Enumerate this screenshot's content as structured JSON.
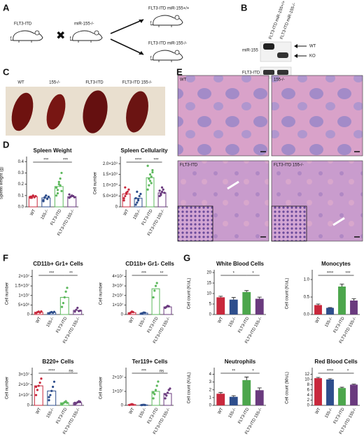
{
  "panels": [
    "A",
    "B",
    "C",
    "D",
    "E",
    "F",
    "G"
  ],
  "panel_a": {
    "parent1": "FLT3-ITD",
    "parent2": "miR-155-/-",
    "offspring1": "FLT3-ITD miR-155+/+",
    "offspring2": "FLT3-ITD miR-155-/-"
  },
  "panel_b": {
    "columns": [
      "FLT3-ITD miR-155+/+",
      "FLT3-ITD miR-155-/-"
    ],
    "rows": [
      "miR-155",
      "FLT3-ITD"
    ],
    "bands": [
      "WT",
      "KO"
    ]
  },
  "panel_c": {
    "labels": [
      "WT",
      "155-/-",
      "FLT3-ITD",
      "FLT3-ITD 155-/-"
    ]
  },
  "panel_e": {
    "labels": [
      "WT",
      "155-/-",
      "FLT3-ITD",
      "FLT3-ITD 155-/-"
    ]
  },
  "chart_data": [
    {
      "type": "dotplot",
      "title": "Spleen Weight",
      "ylabel": "Spleen weight (g)",
      "categories": [
        "WT",
        "155-/-",
        "FLT3-ITD",
        "FLT3-ITD 155-/-"
      ],
      "colors": [
        "#c8283c",
        "#2e4e8c",
        "#5cb85c",
        "#6a3a7e"
      ],
      "values": [
        0.09,
        0.08,
        0.18,
        0.09
      ],
      "points": [
        [
          0.08,
          0.09,
          0.1,
          0.085,
          0.095,
          0.09,
          0.08,
          0.1
        ],
        [
          0.06,
          0.08,
          0.1,
          0.07,
          0.09,
          0.05,
          0.085,
          0.1
        ],
        [
          0.1,
          0.15,
          0.2,
          0.25,
          0.3,
          0.17,
          0.12,
          0.22,
          0.19,
          0.14
        ],
        [
          0.08,
          0.09,
          0.1,
          0.095,
          0.085,
          0.11,
          0.09,
          0.1
        ]
      ],
      "ylim": [
        0,
        0.42
      ],
      "yticks": [
        {
          "value": 0,
          "label": "0.0"
        },
        0.1,
        0.2,
        0.3,
        0.4
      ],
      "brackets": [
        {
          "pair": [
            0,
            2
          ],
          "label": "***"
        },
        {
          "pair": [
            2,
            3
          ],
          "label": "***"
        }
      ]
    },
    {
      "type": "dotplot",
      "title": "Spleen Cellularity",
      "ylabel": "Cell number",
      "categories": [
        "WT",
        "155-/-",
        "FLT3-ITD",
        "FLT3-ITD 155-/-"
      ],
      "colors": [
        "#c8283c",
        "#2e4e8c",
        "#5cb85c",
        "#6a3a7e"
      ],
      "values": [
        600000000,
        400000000,
        1350000000,
        650000000
      ],
      "points": [
        [
          300000000,
          500000000,
          600000000,
          700000000,
          800000000,
          400000000,
          900000000,
          650000000
        ],
        [
          100000000,
          200000000,
          300000000,
          500000000,
          600000000,
          400000000,
          700000000,
          350000000
        ],
        [
          800000000,
          1000000000,
          1200000000,
          1400000000,
          1600000000,
          1900000000,
          1300000000,
          1500000000,
          1100000000,
          1700000000
        ],
        [
          500000000,
          600000000,
          700000000,
          800000000,
          650000000,
          750000000,
          550000000,
          900000000
        ]
      ],
      "ylim": [
        0,
        2200000000
      ],
      "yticks": [
        0,
        {
          "value": 500000000,
          "label": "5.0×10⁸"
        },
        {
          "value": 1000000000,
          "label": "1.0×10⁹"
        },
        {
          "value": 1500000000,
          "label": "1.5×10⁹"
        },
        {
          "value": 2000000000,
          "label": "2.0×10⁹"
        }
      ],
      "brackets": [
        {
          "pair": [
            0,
            2
          ],
          "label": "****"
        },
        {
          "pair": [
            2,
            3
          ],
          "label": "***"
        }
      ]
    },
    {
      "type": "dotplot",
      "title": "CD11b+ Gr1+ Cells",
      "ylabel": "Cell number",
      "categories": [
        "WT",
        "155-/-",
        "FLT3-ITD",
        "FLT3-ITD 155-/-"
      ],
      "colors": [
        "#c8283c",
        "#2e4e8c",
        "#5cb85c",
        "#6a3a7e"
      ],
      "values": [
        1200000,
        1000000,
        9000000,
        2200000
      ],
      "points": [
        [
          800000,
          1200000,
          1500000,
          1000000,
          1600000
        ],
        [
          600000,
          1000000,
          1300000,
          900000,
          1400000
        ],
        [
          4000000,
          6000000,
          9000000,
          12000000,
          14000000
        ],
        [
          1500000,
          2500000,
          3500000,
          1800000,
          2000000
        ]
      ],
      "ylim": [
        0,
        22000000
      ],
      "yticks": [
        0,
        {
          "value": 5000000,
          "label": "5×10⁶"
        },
        {
          "value": 10000000,
          "label": "1×10⁷"
        },
        {
          "value": 15000000,
          "label": "1.5×10⁷"
        },
        {
          "value": 20000000,
          "label": "2×10⁷"
        }
      ],
      "brackets": [
        {
          "pair": [
            0,
            2
          ],
          "label": "***"
        },
        {
          "pair": [
            2,
            3
          ],
          "label": "**"
        }
      ]
    },
    {
      "type": "dotplot",
      "title": "CD11b+ Gr1- Cells",
      "ylabel": "Cell number",
      "categories": [
        "WT",
        "155-/-",
        "FLT3-ITD",
        "FLT3-ITD 155-/-"
      ],
      "colors": [
        "#c8283c",
        "#2e4e8c",
        "#5cb85c",
        "#6a3a7e"
      ],
      "values": [
        2000000,
        1500000,
        27000000,
        8000000
      ],
      "points": [
        [
          1000000,
          2000000,
          3000000,
          2500000
        ],
        [
          1000000,
          1500000,
          2000000,
          1800000
        ],
        [
          18000000,
          25000000,
          30000000,
          33000000
        ],
        [
          7000000,
          8000000,
          9000000,
          8500000
        ]
      ],
      "ylim": [
        0,
        44000000
      ],
      "yticks": [
        0,
        {
          "value": 10000000,
          "label": "1×10⁷"
        },
        {
          "value": 20000000,
          "label": "2×10⁷"
        },
        {
          "value": 30000000,
          "label": "3×10⁷"
        },
        {
          "value": 40000000,
          "label": "4×10⁷"
        }
      ],
      "brackets": [
        {
          "pair": [
            0,
            2
          ],
          "label": "***"
        },
        {
          "pair": [
            2,
            3
          ],
          "label": "**"
        }
      ]
    },
    {
      "type": "dotplot",
      "title": "B220+ Cells",
      "ylabel": "Cell number",
      "categories": [
        "WT",
        "155-/-",
        "FLT3-ITD",
        "FLT3-ITD 155-/-"
      ],
      "colors": [
        "#c8283c",
        "#2e4e8c",
        "#5cb85c",
        "#6a3a7e"
      ],
      "values": [
        19000000,
        14000000,
        2500000,
        2500000
      ],
      "points": [
        [
          10000000,
          15000000,
          19000000,
          22000000,
          26000000,
          18000000
        ],
        [
          5000000,
          10000000,
          14000000,
          18000000,
          23000000,
          8000000
        ],
        [
          1000000,
          2000000,
          3000000,
          4000000,
          2500000,
          1500000
        ],
        [
          1000000,
          2000000,
          3000000,
          4000000,
          3500000,
          2500000
        ]
      ],
      "ylim": [
        0,
        34000000
      ],
      "yticks": [
        0,
        {
          "value": 10000000,
          "label": "1×10⁷"
        },
        {
          "value": 20000000,
          "label": "2×10⁷"
        },
        {
          "value": 30000000,
          "label": "3×10⁷"
        }
      ],
      "brackets": [
        {
          "pair": [
            0,
            2
          ],
          "label": "****"
        },
        {
          "pair": [
            2,
            3
          ],
          "label": "ns"
        }
      ]
    },
    {
      "type": "dotplot",
      "title": "Ter119+ Cells",
      "ylabel": "Cell number",
      "categories": [
        "WT",
        "155-/-",
        "FLT3-ITD",
        "FLT3-ITD 155-/-"
      ],
      "colors": [
        "#c8283c",
        "#2e4e8c",
        "#5cb85c",
        "#6a3a7e"
      ],
      "values": [
        600000,
        300000,
        10000000,
        8500000
      ],
      "points": [
        [
          300000,
          600000,
          900000,
          500000
        ],
        [
          200000,
          300000,
          400000,
          250000
        ],
        [
          5000000,
          8000000,
          11000000,
          14000000,
          17000000,
          9000000
        ],
        [
          5000000,
          7000000,
          9000000,
          11000000,
          12000000,
          8000000
        ]
      ],
      "ylim": [
        0,
        25000000
      ],
      "yticks": [
        0,
        {
          "value": 10000000,
          "label": "1×10⁷"
        },
        {
          "value": 20000000,
          "label": "2×10⁷"
        }
      ],
      "brackets": [
        {
          "pair": [
            0,
            2
          ],
          "label": "***"
        },
        {
          "pair": [
            2,
            3
          ],
          "label": "ns"
        }
      ]
    },
    {
      "type": "bar",
      "title": "White Blood Cells",
      "ylabel": "Cell count (K/uL)",
      "categories": [
        "WT",
        "155-/-",
        "FLT3-ITD",
        "FLT3-ITD 155-/-"
      ],
      "colors": [
        "#c8283c",
        "#2e4e8c",
        "#4ca64c",
        "#6a3a7e"
      ],
      "values": [
        8.2,
        7.1,
        10.7,
        7.5
      ],
      "errors": [
        0.5,
        1.0,
        0.7,
        0.8
      ],
      "ylim": [
        0,
        20
      ],
      "yticks": [
        0,
        5,
        10,
        15,
        20
      ],
      "brackets": [
        {
          "pair": [
            0,
            2
          ],
          "label": "*"
        },
        {
          "pair": [
            2,
            3
          ],
          "label": "*"
        }
      ]
    },
    {
      "type": "bar",
      "title": "Monocytes",
      "ylabel": "Cell count (K/uL)",
      "categories": [
        "WT",
        "155-/-",
        "FLT3-ITD",
        "FLT3-ITD 155-/-"
      ],
      "colors": [
        "#c8283c",
        "#2e4e8c",
        "#4ca64c",
        "#6a3a7e"
      ],
      "values": [
        0.27,
        0.19,
        0.8,
        0.4
      ],
      "errors": [
        0.03,
        0.01,
        0.07,
        0.05
      ],
      "ylim": [
        0,
        1.2
      ],
      "yticks": [
        {
          "value": 0,
          "label": "0.0"
        },
        0.5,
        {
          "value": 1,
          "label": "1.0"
        }
      ],
      "brackets": [
        {
          "pair": [
            0,
            2
          ],
          "label": "****"
        },
        {
          "pair": [
            2,
            3
          ],
          "label": "***"
        }
      ]
    },
    {
      "type": "bar",
      "title": "Neutrophils",
      "ylabel": "Cell count (K/uL)",
      "categories": [
        "WT",
        "155-/-",
        "FLT3-ITD",
        "FLT3-ITD 155-/-"
      ],
      "colors": [
        "#c8283c",
        "#2e4e8c",
        "#4ca64c",
        "#6a3a7e"
      ],
      "values": [
        1.5,
        1.1,
        3.25,
        1.95
      ],
      "errors": [
        0.15,
        0.15,
        0.4,
        0.3
      ],
      "ylim": [
        0,
        4.5
      ],
      "yticks": [
        0,
        1,
        2,
        3,
        4
      ],
      "brackets": [
        {
          "pair": [
            0,
            2
          ],
          "label": "**"
        },
        {
          "pair": [
            2,
            3
          ],
          "label": "*"
        }
      ]
    },
    {
      "type": "bar",
      "title": "Red Blood Cells",
      "ylabel": "Cell count (M/uL)",
      "categories": [
        "WT",
        "155-/-",
        "FLT3-ITD",
        "FLT3-ITD 155-/-"
      ],
      "colors": [
        "#c8283c",
        "#2e4e8c",
        "#4ca64c",
        "#6a3a7e"
      ],
      "values": [
        10.5,
        10.0,
        6.7,
        8.0
      ],
      "errors": [
        0.3,
        0.3,
        0.3,
        0.2
      ],
      "ylim": [
        0,
        13.5
      ],
      "yticks": [
        0,
        2,
        4,
        6,
        8,
        10,
        12
      ],
      "brackets": [
        {
          "pair": [
            0,
            2
          ],
          "label": "****"
        },
        {
          "pair": [
            2,
            3
          ],
          "label": "*"
        }
      ]
    }
  ]
}
